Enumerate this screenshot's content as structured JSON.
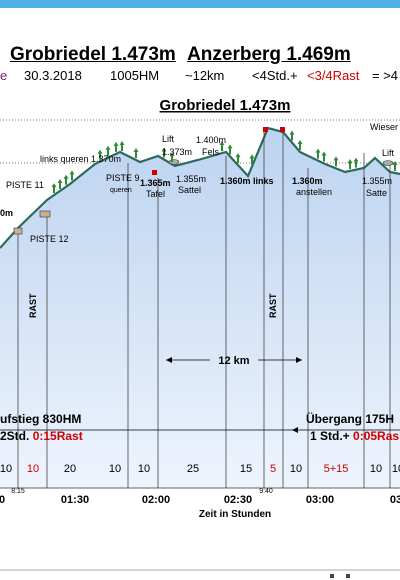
{
  "title": {
    "part1": "Grobriedel 1.473m",
    "part2": "Anzerberg 1.469m"
  },
  "info_line": {
    "prefix": "e",
    "date": "30.3.2018",
    "hm": "1005HM",
    "distance": "~12km",
    "time": "<4Std.+",
    "rest": "<3/4Rast",
    "suffix": "= >4"
  },
  "chart_data": {
    "type": "area",
    "title": "Grobriedel 1.473m",
    "xlabel": "Zeit in Stunden",
    "x_ticks": [
      "0",
      "01:30",
      "02:00",
      "02:30",
      "03:00",
      "03"
    ],
    "x_small_ticks": [
      "8:15",
      "9:40"
    ],
    "segment_labels": [
      "10",
      "10",
      "20",
      "10",
      "10",
      "25",
      "15",
      "5",
      "10",
      "5+15",
      "10",
      "10"
    ],
    "segment_label_colors": [
      "#000000",
      "#d00000",
      "#000000",
      "#000000",
      "#000000",
      "#000000",
      "#000000",
      "#d00000",
      "#000000",
      "#d00000",
      "#000000",
      "#000000"
    ],
    "elevation_profile": [
      1180,
      1230,
      1300,
      1340,
      1390,
      1420,
      1395,
      1410,
      1385,
      1400,
      1420,
      1360,
      1480,
      1470,
      1420,
      1390,
      1370,
      1380,
      1405,
      1370,
      1365
    ],
    "annotations": [
      {
        "text": "links queren 1.370m",
        "color": "#222222"
      },
      {
        "text": "PISTE 11",
        "color": "#2f7fbf"
      },
      {
        "text": "PISTE 12",
        "color": "#2f7fbf"
      },
      {
        "text": "PISTE 9",
        "color": "#2f7fbf"
      },
      {
        "text": "queren",
        "color": "#2f7fbf"
      },
      {
        "text": "Lift",
        "color": "#8a7a30"
      },
      {
        "text": "1.373m",
        "color": "#8a7a30"
      },
      {
        "text": "1.365m",
        "color": "#e07020"
      },
      {
        "text": "Tafel",
        "color": "#e07020"
      },
      {
        "text": "1.400m",
        "color": "#666666"
      },
      {
        "text": "Fels",
        "color": "#666666"
      },
      {
        "text": "1.355m",
        "color": "#222222"
      },
      {
        "text": "Sattel",
        "color": "#222222"
      },
      {
        "text": "1.360m links",
        "color": "#2a8a2a"
      },
      {
        "text": "1.360m",
        "color": "#2a8a2a"
      },
      {
        "text": "anstellen",
        "color": "#2a8a2a"
      },
      {
        "text": "Wieser",
        "color": "#d00000"
      },
      {
        "text": "1.355m",
        "color": "#222222"
      },
      {
        "text": "Satte",
        "color": "#222222"
      },
      {
        "text": "Lift",
        "color": "#8a7a30"
      },
      {
        "text": "0m",
        "color": "#e07020"
      },
      {
        "text": "RAST",
        "color": "#d00000"
      },
      {
        "text": "RAST",
        "color": "#d00000"
      },
      {
        "text": "12 km",
        "color": "#000000"
      }
    ],
    "legs": [
      {
        "name": "ufstieg 830HM",
        "duration": "2Std.",
        "rest": "0:15Rast"
      },
      {
        "name": "Übergang 175H",
        "duration": "1 Std.+",
        "rest": "0:05Ras"
      }
    ]
  },
  "colors": {
    "fill_top": "#bcd3f0",
    "fill_bottom": "#eef4fd",
    "line": "#2a6b5b",
    "rest": "#d00000",
    "tree": "#2f8a34",
    "header_bar": "#4fb3e8"
  }
}
